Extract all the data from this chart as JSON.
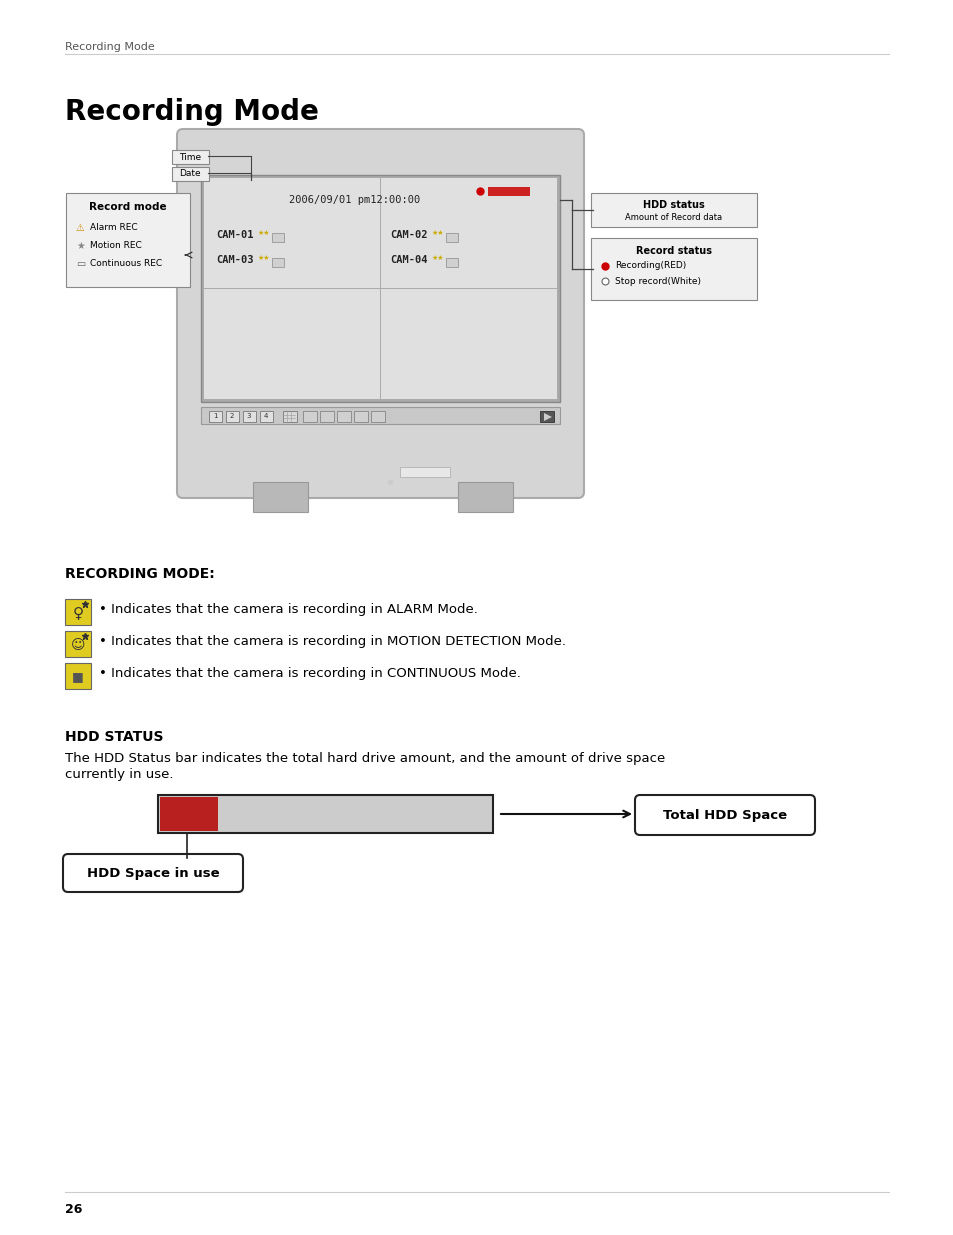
{
  "bg_color": "#ffffff",
  "header_text": "Recording Mode",
  "title_text": "Recording Mode",
  "section1_header": "RECORDING MODE:",
  "section1_items": [
    "• Indicates that the camera is recording in ALARM Mode.",
    "• Indicates that the camera is recording in MOTION DETECTION Mode.",
    "• Indicates that the camera is recording in CONTINUOUS Mode."
  ],
  "section2_header": "HDD STATUS",
  "section2_body1": "The HDD Status bar indicates the total hard drive amount, and the amount of drive space",
  "section2_body2": "currently in use.",
  "hdd_label1": "Total HDD Space",
  "hdd_label2": "HDD Space in use",
  "footer_text": "26",
  "hdd_bar_used": "#b82020",
  "record_mode_label": "Record mode",
  "alarm_rec": "Alarm REC",
  "motion_rec": "Motion REC",
  "continuous_rec": "Continuous REC",
  "cam_time": "2006/09/01 pm12:00:00",
  "cam_labels": [
    "CAM-01",
    "CAM-02",
    "CAM-03",
    "CAM-04"
  ],
  "hdd_status_label": "HDD status",
  "hdd_amount_label": "Amount of Record data",
  "record_status_label": "Record status",
  "record_red": "Recording(RED)",
  "record_white": "Stop record(White)",
  "time_label": "Time",
  "date_label": "Date",
  "monitor_body_color": "#d5d5d5",
  "monitor_border_color": "#aaaaaa",
  "screen_inner_color": "#d8d8d8",
  "btn_bar_color": "#c8c8c8"
}
